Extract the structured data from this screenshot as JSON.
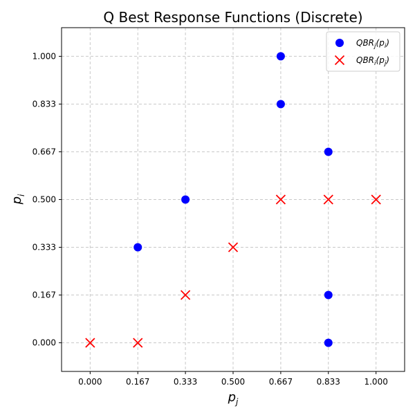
{
  "chart_data": {
    "type": "scatter",
    "title": "Q Best Response Functions (Discrete)",
    "xlabel": {
      "base": "p",
      "sub": "j"
    },
    "ylabel": {
      "base": "p",
      "sub": "i"
    },
    "xlim": [
      -0.1,
      1.1
    ],
    "ylim": [
      -0.1,
      1.1
    ],
    "xticks": [
      0,
      0.1667,
      0.3333,
      0.5,
      0.6667,
      0.8333,
      1.0
    ],
    "yticks": [
      0,
      0.1667,
      0.3333,
      0.5,
      0.6667,
      0.8333,
      1.0
    ],
    "xtick_labels": [
      "0.000",
      "0.167",
      "0.333",
      "0.500",
      "0.667",
      "0.833",
      "1.000"
    ],
    "ytick_labels": [
      "0.000",
      "0.167",
      "0.333",
      "0.500",
      "0.667",
      "0.833",
      "1.000"
    ],
    "grid": true,
    "legend_position": "top-right",
    "series": [
      {
        "name": "QBRj(pi)",
        "legend": {
          "base": "QBR",
          "sub1": "j",
          "arg": "p",
          "sub2": "i"
        },
        "marker": "circle",
        "color": "#0000ff",
        "points": [
          [
            0.1667,
            0.3333
          ],
          [
            0.3333,
            0.5
          ],
          [
            0.6667,
            0.8333
          ],
          [
            0.6667,
            1.0
          ],
          [
            0.8333,
            0.6667
          ],
          [
            0.8333,
            0.1667
          ],
          [
            0.8333,
            0.0
          ]
        ]
      },
      {
        "name": "QBRi(pj)",
        "legend": {
          "base": "QBR",
          "sub1": "i",
          "arg": "p",
          "sub2": "j"
        },
        "marker": "x",
        "color": "#ff0000",
        "points": [
          [
            0.0,
            0.0
          ],
          [
            0.1667,
            0.0
          ],
          [
            0.3333,
            0.1667
          ],
          [
            0.5,
            0.3333
          ],
          [
            0.6667,
            0.5
          ],
          [
            0.8333,
            0.5
          ],
          [
            1.0,
            0.5
          ]
        ]
      }
    ]
  }
}
